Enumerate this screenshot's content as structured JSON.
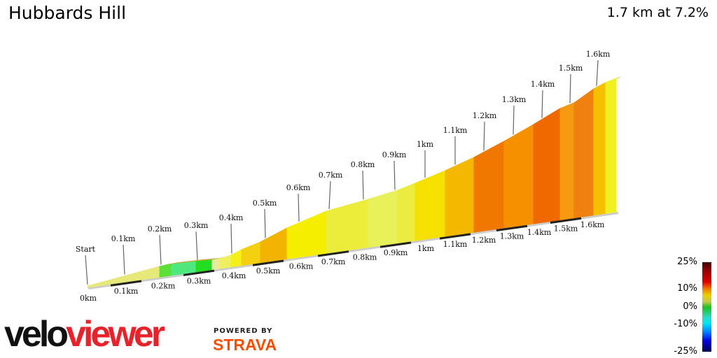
{
  "title": "Hubbards Hill",
  "summary": "1.7 km at 7.2%",
  "chart_data": {
    "type": "area",
    "title": "Hubbards Hill",
    "subtitle": "1.7 km at 7.2%",
    "top_labels": [
      "Start",
      "0.1km",
      "0.2km",
      "0.3km",
      "0.4km",
      "0.5km",
      "0.6km",
      "0.7km",
      "0.8km",
      "0.9km",
      "1km",
      "1.1km",
      "1.2km",
      "1.3km",
      "1.4km",
      "1.5km",
      "1.6km"
    ],
    "axis_labels": [
      "0km",
      "0.1km",
      "0.2km",
      "0.3km",
      "0.4km",
      "0.5km",
      "0.6km",
      "0.7km",
      "0.8km",
      "0.9km",
      "1km",
      "1.1km",
      "1.2km",
      "1.3km",
      "1.4km",
      "1.5km",
      "1.6km"
    ],
    "segment_colors": [
      "#e6e878",
      "#5be03a",
      "#4ee87e",
      "#22dd22",
      "#e8eca0",
      "#eef060",
      "#f5f018",
      "#f5d010",
      "#f2b400",
      "#f5ee00",
      "#ecec3a",
      "#e8f05a",
      "#ecec40",
      "#f5e000",
      "#f5b800",
      "#f07800",
      "#f59000",
      "#f06800",
      "#f59a10",
      "#f08010",
      "#f5c000",
      "#f0f020"
    ],
    "legend": {
      "title": "gradient",
      "ticks": [
        "25%",
        "10%",
        "0%",
        "-10%",
        "-25%"
      ]
    }
  },
  "branding": {
    "logo_a": "velo",
    "logo_b": "viewer",
    "powered": "POWERED BY",
    "strava": "STRAVA"
  }
}
